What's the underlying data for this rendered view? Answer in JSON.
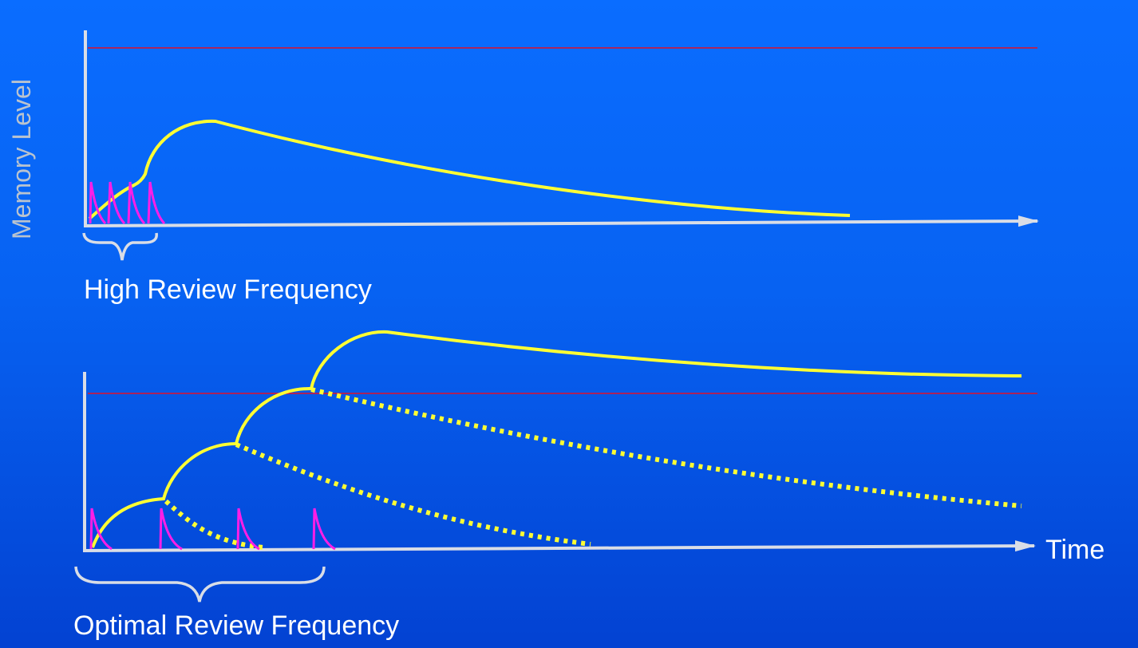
{
  "labels": {
    "y_axis": "Memory Level",
    "x_axis": "Time",
    "top_caption": "High Review Frequency",
    "bottom_caption": "Optimal Review Frequency"
  },
  "colors": {
    "axis": "#d9dde6",
    "threshold": "#e0102a",
    "memory_curve": "#ffff33",
    "review_spike": "#ff1ee6",
    "label": "#ffffff",
    "y_label": "#b9c3cf"
  }
}
